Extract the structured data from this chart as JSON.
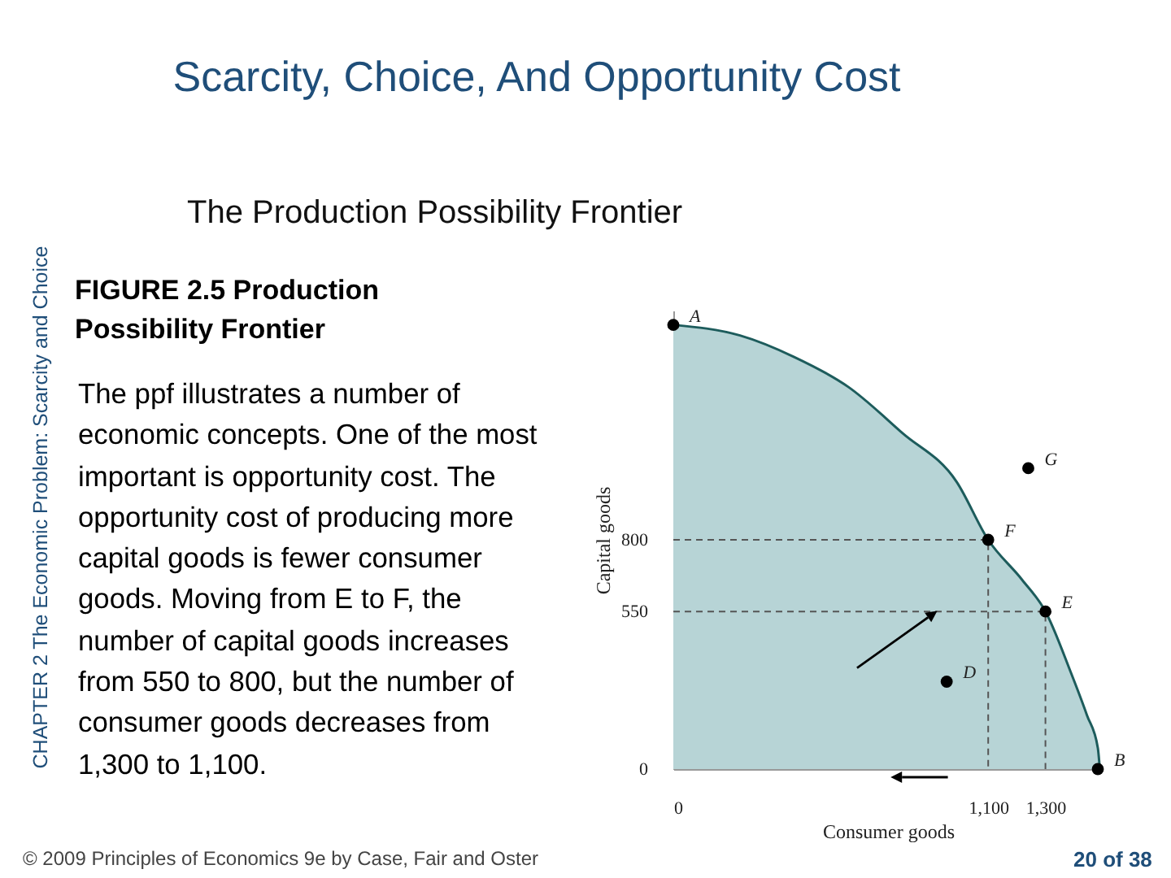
{
  "chart_data": {
    "type": "area",
    "title": "Scarcity, Choice, And Opportunity Cost",
    "subtitle": "The Production Possibility Frontier",
    "xlabel": "Consumer goods",
    "ylabel": "Capital goods",
    "xlim": [
      0,
      1500
    ],
    "ylim": [
      0,
      1600
    ],
    "xticks": [
      0,
      {
        "value": 1100,
        "label": "1,100"
      },
      {
        "value": 1300,
        "label": "1,300"
      }
    ],
    "yticks": [
      0,
      550,
      800
    ],
    "grid": false,
    "series": [
      {
        "color": "#b7d4d6",
        "x": [
          0,
          233,
          422,
          612,
          801,
          990,
          1100,
          1218,
          1300,
          1388,
          1445,
          1483,
          1490
        ],
        "values": [
          1550,
          1513,
          1438,
          1333,
          1172,
          1002,
          800,
          661,
          550,
          339,
          188,
          74,
          0
        ]
      },
      {
        "type": "line",
        "color": "#555555",
        "line_style": "dashed",
        "x": [
          0,
          1100,
          1100
        ],
        "values": [
          800,
          800,
          0
        ]
      },
      {
        "type": "line",
        "color": "#555555",
        "line_style": "dashed",
        "x": [
          0,
          1300,
          1300
        ],
        "values": [
          550,
          550,
          0
        ]
      },
      {
        "type": "scatter",
        "marker": "circle",
        "color": "#000000",
        "x": [
          0,
          1483,
          955,
          1300,
          1100,
          1240
        ],
        "values": [
          1550,
          0,
          305,
          550,
          800,
          1050
        ]
      }
    ],
    "annotations": [
      {
        "text": "A",
        "x": 0,
        "y": 1550
      },
      {
        "text": "B",
        "x": 1483,
        "y": 0
      },
      {
        "text": "D",
        "x": 955,
        "y": 305
      },
      {
        "text": "E",
        "x": 1300,
        "y": 550
      },
      {
        "text": "F",
        "x": 1100,
        "y": 800
      },
      {
        "text": "G",
        "x": 1240,
        "y": 1050
      },
      "CHAPTER 2  The Economic Problem:  Scarcity and Choice",
      "FIGURE 2.5  Production Possibility Frontier",
      "The ppf illustrates a number of economic concepts. One of the most important is opportunity cost. The opportunity cost of producing more capital goods is fewer consumer goods. Moving from E to F, the number of capital goods increases from 550 to 800, but the number of consumer goods decreases from 1,300 to 1,100.",
      "© 2009  Principles of Economics 9e by Case, Fair and Oster",
      "20 of 38"
    ]
  }
}
